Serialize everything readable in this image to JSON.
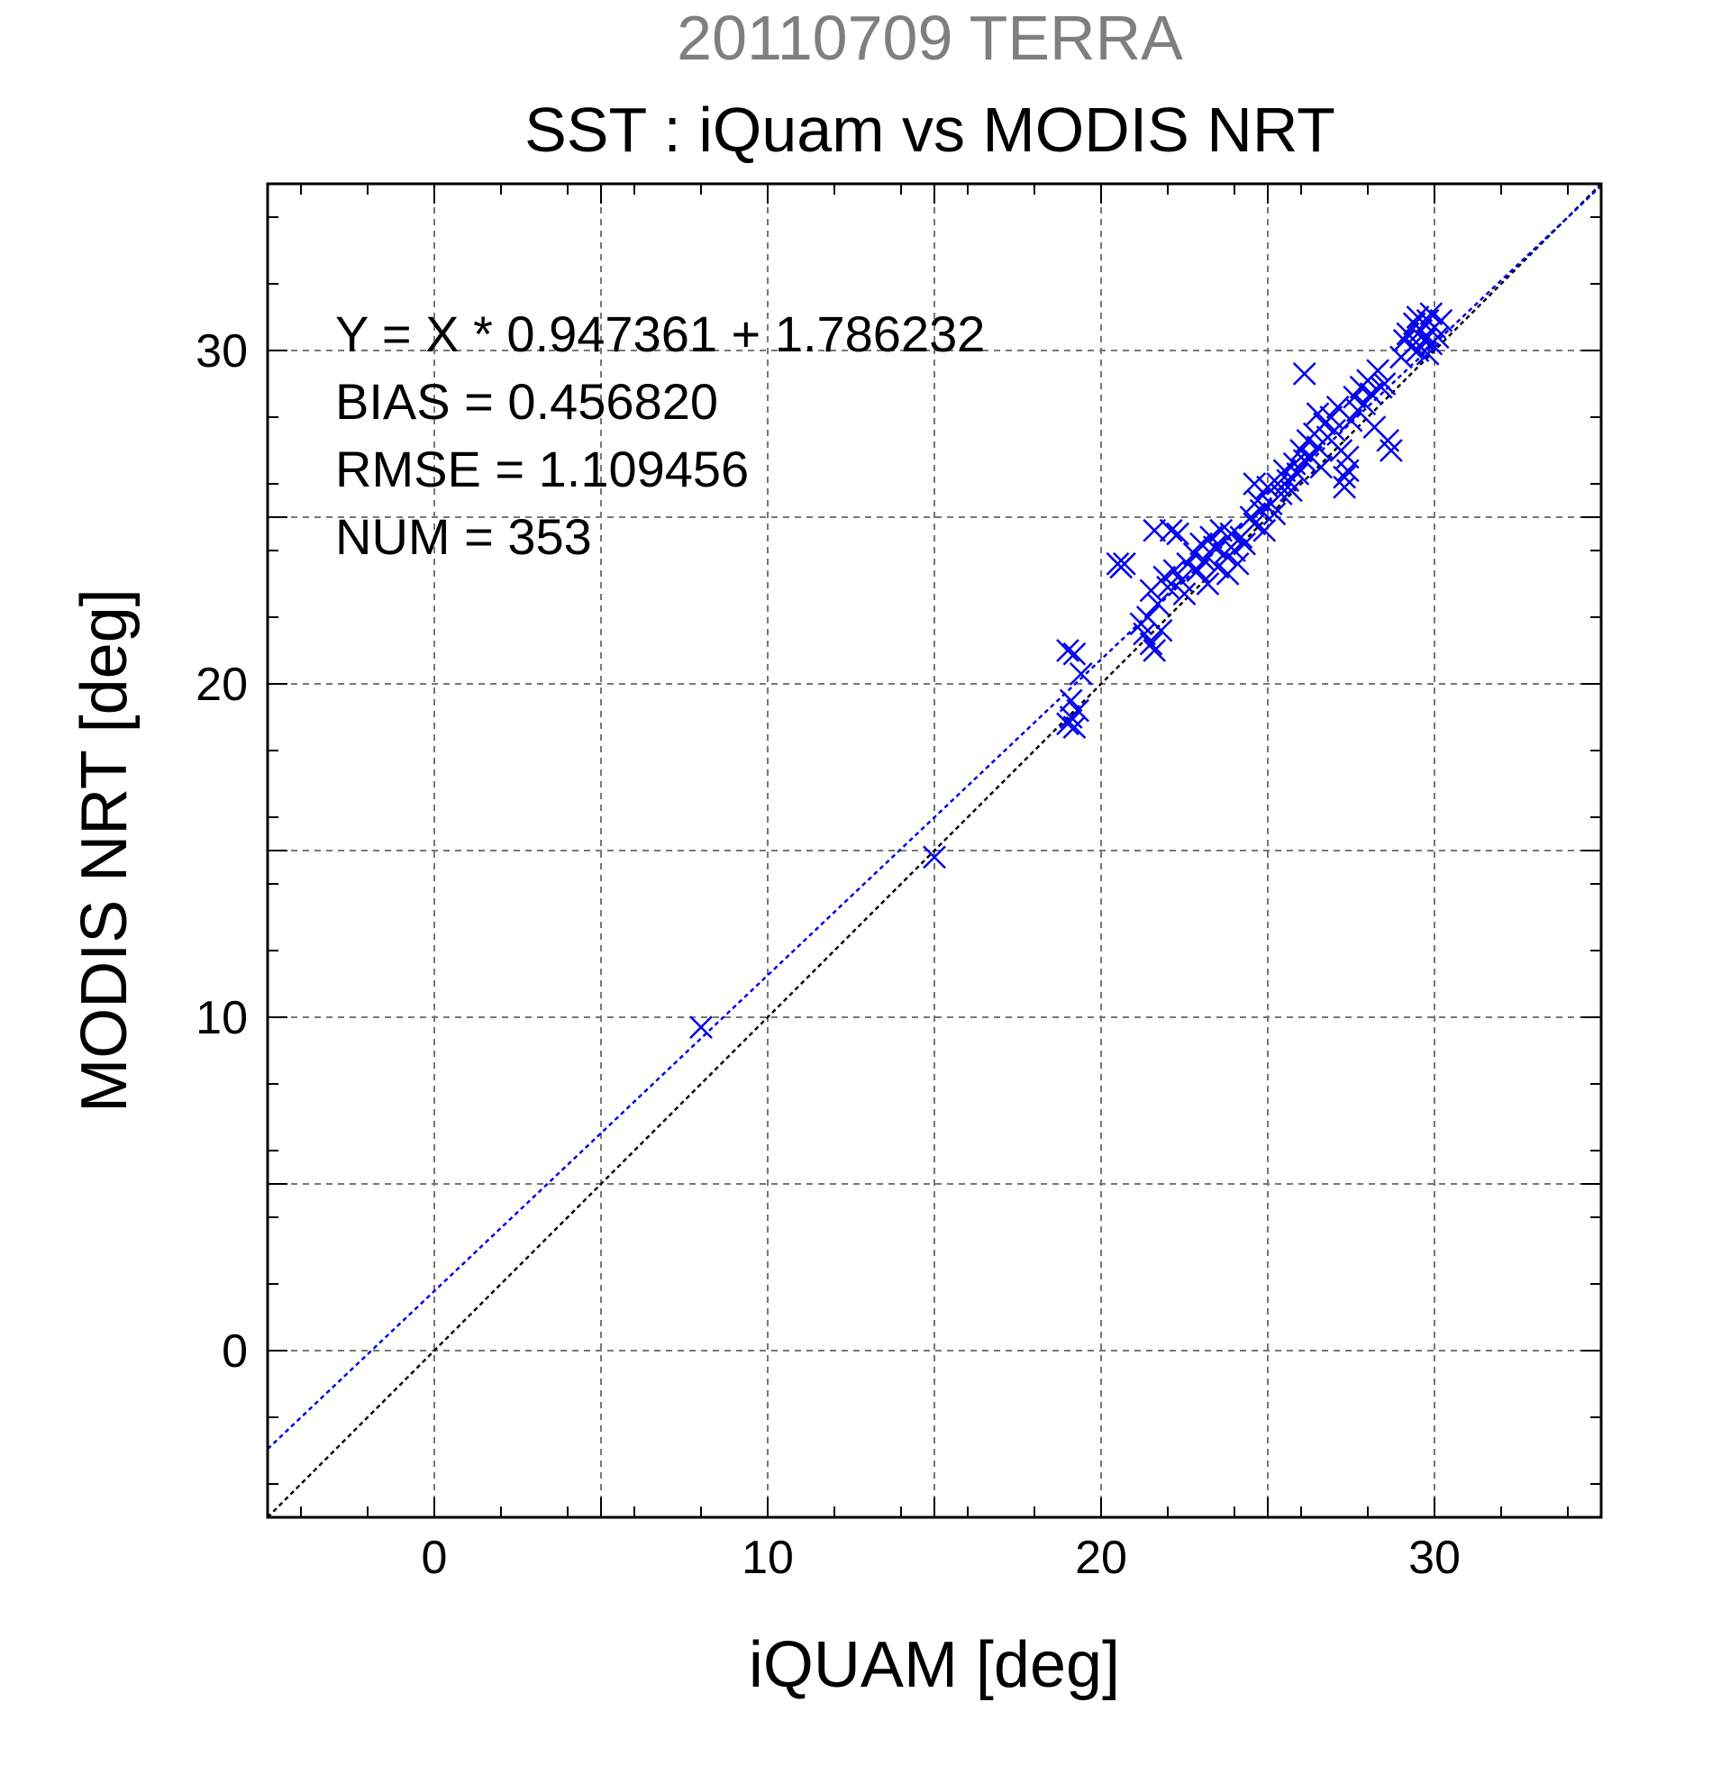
{
  "chart_data": {
    "type": "scatter",
    "title": "20110709 TERRA",
    "subtitle": "SST : iQuam vs MODIS NRT",
    "xlabel": "iQUAM [deg]",
    "ylabel": "MODIS NRT [deg]",
    "xlim": [
      -5,
      35
    ],
    "ylim": [
      -5,
      35
    ],
    "xticks": [
      0,
      10,
      20,
      30
    ],
    "yticks": [
      0,
      10,
      20,
      30
    ],
    "grid": true,
    "colors": {
      "points": "#0000ee",
      "fit_line": "#0000ee",
      "identity_line": "#000000",
      "title": "#7f7f7f",
      "subtitle": "#000000"
    },
    "stats": [
      "Y = X * 0.947361 + 1.786232",
      "BIAS = 0.456820",
      "RMSE = 1.109456",
      "NUM = 353"
    ],
    "fit": {
      "slope": 0.947361,
      "intercept": 1.786232
    },
    "marker": "x",
    "points": [
      [
        8.0,
        9.7
      ],
      [
        15.0,
        14.8
      ],
      [
        19.0,
        21.0
      ],
      [
        19.2,
        20.9
      ],
      [
        19.1,
        19.5
      ],
      [
        19.3,
        19.2
      ],
      [
        19.0,
        18.8
      ],
      [
        19.2,
        18.7
      ],
      [
        19.4,
        20.3
      ],
      [
        19.1,
        19.0
      ],
      [
        20.5,
        23.6
      ],
      [
        20.6,
        23.5
      ],
      [
        20.7,
        23.6
      ],
      [
        21.2,
        21.8
      ],
      [
        21.3,
        21.5
      ],
      [
        21.4,
        22.0
      ],
      [
        21.5,
        21.2
      ],
      [
        21.6,
        21.0
      ],
      [
        21.7,
        22.4
      ],
      [
        21.5,
        22.8
      ],
      [
        21.8,
        21.6
      ],
      [
        21.9,
        23.2
      ],
      [
        21.6,
        24.6
      ],
      [
        22.0,
        22.9
      ],
      [
        22.1,
        24.6
      ],
      [
        22.2,
        23.4
      ],
      [
        22.4,
        23.1
      ],
      [
        22.5,
        22.7
      ],
      [
        22.3,
        24.5
      ],
      [
        22.6,
        23.6
      ],
      [
        22.8,
        23.9
      ],
      [
        22.9,
        23.4
      ],
      [
        23.0,
        24.2
      ],
      [
        23.1,
        23.7
      ],
      [
        23.2,
        23.0
      ],
      [
        23.3,
        24.4
      ],
      [
        23.4,
        24.1
      ],
      [
        23.5,
        23.5
      ],
      [
        23.6,
        24.6
      ],
      [
        23.7,
        23.9
      ],
      [
        23.8,
        23.3
      ],
      [
        23.9,
        24.5
      ],
      [
        24.0,
        24.0
      ],
      [
        24.1,
        23.6
      ],
      [
        24.2,
        24.4
      ],
      [
        24.3,
        24.2
      ],
      [
        24.5,
        25.0
      ],
      [
        24.6,
        24.8
      ],
      [
        24.7,
        25.5
      ],
      [
        24.8,
        25.2
      ],
      [
        24.9,
        24.6
      ],
      [
        25.0,
        25.9
      ],
      [
        25.1,
        25.4
      ],
      [
        25.2,
        25.1
      ],
      [
        25.3,
        26.0
      ],
      [
        25.4,
        25.7
      ],
      [
        25.5,
        26.4
      ],
      [
        25.6,
        26.1
      ],
      [
        25.7,
        25.8
      ],
      [
        25.8,
        26.6
      ],
      [
        25.9,
        26.3
      ],
      [
        24.6,
        26.0
      ],
      [
        26.0,
        27.0
      ],
      [
        26.1,
        26.7
      ],
      [
        26.2,
        27.3
      ],
      [
        26.3,
        26.8
      ],
      [
        26.4,
        27.5
      ],
      [
        26.5,
        27.1
      ],
      [
        26.6,
        26.5
      ],
      [
        26.7,
        27.8
      ],
      [
        26.8,
        27.4
      ],
      [
        26.9,
        28.0
      ],
      [
        27.0,
        27.6
      ],
      [
        27.1,
        28.3
      ],
      [
        27.2,
        27.0
      ],
      [
        27.3,
        26.2
      ],
      [
        27.4,
        26.8
      ],
      [
        27.5,
        27.9
      ],
      [
        27.6,
        28.6
      ],
      [
        27.7,
        28.2
      ],
      [
        27.8,
        28.9
      ],
      [
        27.9,
        28.4
      ],
      [
        28.0,
        29.1
      ],
      [
        28.1,
        28.7
      ],
      [
        28.2,
        27.7
      ],
      [
        28.3,
        29.4
      ],
      [
        28.4,
        28.9
      ],
      [
        28.5,
        29.0
      ],
      [
        28.6,
        27.3
      ],
      [
        28.7,
        27.0
      ],
      [
        26.5,
        28.1
      ],
      [
        27.3,
        25.9
      ],
      [
        27.4,
        26.4
      ],
      [
        26.1,
        29.3
      ],
      [
        29.0,
        29.8
      ],
      [
        29.1,
        30.3
      ],
      [
        29.2,
        30.5
      ],
      [
        29.3,
        30.1
      ],
      [
        29.4,
        30.8
      ],
      [
        29.5,
        30.0
      ],
      [
        29.6,
        30.6
      ],
      [
        29.7,
        30.3
      ],
      [
        29.8,
        30.9
      ],
      [
        29.9,
        30.2
      ],
      [
        30.0,
        30.7
      ],
      [
        29.5,
        31.0
      ],
      [
        29.8,
        29.9
      ],
      [
        30.1,
        30.4
      ],
      [
        30.2,
        30.9
      ],
      [
        29.9,
        31.1
      ]
    ]
  }
}
